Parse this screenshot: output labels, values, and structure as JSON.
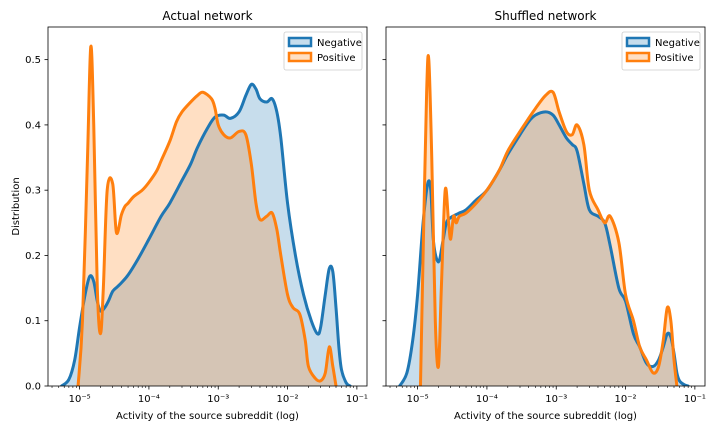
{
  "figure": {
    "ylabel": "Distribution",
    "xlabel": "Activity of the source subreddit (log)"
  },
  "colors": {
    "negative": "#1f77b4",
    "positive": "#ff7f0e"
  },
  "chart_data": [
    {
      "type": "area",
      "title": "Actual network",
      "xlabel": "Activity of the source subreddit (log)",
      "ylabel": "Distribution",
      "x_scale": "log",
      "xlim": [
        3.5e-06,
        0.14
      ],
      "ylim": [
        0,
        0.55
      ],
      "xticks": [
        1e-05,
        0.0001,
        0.001,
        0.01,
        0.1
      ],
      "xtick_labels": [
        "10⁻⁵",
        "10⁻⁴",
        "10⁻³",
        "10⁻²",
        "10⁻¹"
      ],
      "yticks": [
        0.0,
        0.1,
        0.2,
        0.3,
        0.4,
        0.5
      ],
      "ytick_labels": [
        "0.0",
        "0.1",
        "0.2",
        "0.3",
        "0.4",
        "0.5"
      ],
      "legend": "top-right",
      "series": [
        {
          "name": "Negative",
          "x": [
            5.5e-06,
            7e-06,
            8.5e-06,
            1e-05,
            1.2e-05,
            1.4e-05,
            1.6e-05,
            1.8e-05,
            2e-05,
            2.3e-05,
            2.6e-05,
            3e-05,
            3.5e-05,
            4e-05,
            5e-05,
            7e-05,
            0.0001,
            0.00015,
            0.0002,
            0.0003,
            0.0004,
            0.0005,
            0.0007,
            0.0009,
            0.0012,
            0.0015,
            0.002,
            0.0025,
            0.003,
            0.0035,
            0.004,
            0.005,
            0.006,
            0.007,
            0.008,
            0.01,
            0.013,
            0.017,
            0.022,
            0.027,
            0.03,
            0.035,
            0.04,
            0.045,
            0.05,
            0.055,
            0.06,
            0.07,
            0.08
          ],
          "y": [
            0.0,
            0.01,
            0.04,
            0.09,
            0.14,
            0.168,
            0.16,
            0.13,
            0.115,
            0.12,
            0.13,
            0.145,
            0.152,
            0.158,
            0.17,
            0.195,
            0.225,
            0.26,
            0.28,
            0.315,
            0.34,
            0.365,
            0.395,
            0.412,
            0.415,
            0.41,
            0.42,
            0.445,
            0.462,
            0.455,
            0.44,
            0.435,
            0.44,
            0.42,
            0.38,
            0.28,
            0.2,
            0.14,
            0.1,
            0.08,
            0.09,
            0.14,
            0.18,
            0.175,
            0.12,
            0.06,
            0.025,
            0.005,
            0.0
          ]
        },
        {
          "name": "Positive",
          "x": [
            9.5e-06,
            1.1e-05,
            1.3e-05,
            1.45e-05,
            1.6e-05,
            1.8e-05,
            2e-05,
            2.2e-05,
            2.5e-05,
            3e-05,
            3.4e-05,
            4e-05,
            4.5e-05,
            5e-05,
            6e-05,
            8e-05,
            0.0001,
            0.00013,
            0.00015,
            0.0002,
            0.00025,
            0.0003,
            0.0004,
            0.0005,
            0.0006,
            0.0008,
            0.0009,
            0.001,
            0.0012,
            0.0015,
            0.002,
            0.0025,
            0.003,
            0.0035,
            0.004,
            0.005,
            0.006,
            0.007,
            0.008,
            0.01,
            0.012,
            0.015,
            0.018,
            0.02,
            0.025,
            0.03,
            0.035,
            0.04,
            0.045,
            0.05
          ],
          "y": [
            0.0,
            0.1,
            0.35,
            0.52,
            0.4,
            0.15,
            0.08,
            0.15,
            0.3,
            0.31,
            0.235,
            0.262,
            0.275,
            0.28,
            0.29,
            0.3,
            0.312,
            0.33,
            0.345,
            0.375,
            0.405,
            0.42,
            0.435,
            0.445,
            0.45,
            0.44,
            0.425,
            0.4,
            0.385,
            0.38,
            0.39,
            0.385,
            0.34,
            0.28,
            0.255,
            0.26,
            0.265,
            0.24,
            0.2,
            0.14,
            0.12,
            0.11,
            0.07,
            0.03,
            0.012,
            0.008,
            0.02,
            0.06,
            0.03,
            0.0
          ]
        }
      ]
    },
    {
      "type": "area",
      "title": "Shuffled network",
      "xlabel": "Activity of the source subreddit (log)",
      "x_scale": "log",
      "xlim": [
        3.5e-06,
        0.14
      ],
      "ylim": [
        0,
        0.55
      ],
      "xticks": [
        1e-05,
        0.0001,
        0.001,
        0.01,
        0.1
      ],
      "xtick_labels": [
        "10⁻⁵",
        "10⁻⁴",
        "10⁻³",
        "10⁻²",
        "10⁻¹"
      ],
      "legend": "top-right",
      "series": [
        {
          "name": "Negative",
          "x": [
            5.5e-06,
            7e-06,
            8.5e-06,
            1e-05,
            1.2e-05,
            1.4e-05,
            1.55e-05,
            1.7e-05,
            2e-05,
            2.3e-05,
            2.6e-05,
            3e-05,
            3.5e-05,
            4e-05,
            5e-05,
            7e-05,
            0.0001,
            0.00015,
            0.0002,
            0.0003,
            0.0004,
            0.0005,
            0.0007,
            0.0009,
            0.0011,
            0.0014,
            0.0017,
            0.002,
            0.0025,
            0.003,
            0.004,
            0.005,
            0.006,
            0.008,
            0.01,
            0.013,
            0.016,
            0.02,
            0.025,
            0.03,
            0.035,
            0.04,
            0.045,
            0.05,
            0.055,
            0.06,
            0.07,
            0.08
          ],
          "y": [
            0.0,
            0.02,
            0.07,
            0.14,
            0.25,
            0.31,
            0.3,
            0.22,
            0.19,
            0.22,
            0.25,
            0.258,
            0.262,
            0.265,
            0.27,
            0.285,
            0.3,
            0.33,
            0.355,
            0.385,
            0.405,
            0.415,
            0.42,
            0.415,
            0.4,
            0.38,
            0.37,
            0.36,
            0.31,
            0.27,
            0.26,
            0.25,
            0.215,
            0.15,
            0.13,
            0.08,
            0.06,
            0.035,
            0.03,
            0.04,
            0.06,
            0.08,
            0.075,
            0.05,
            0.02,
            0.008,
            0.002,
            0.0
          ]
        },
        {
          "name": "Positive",
          "x": [
            1.1e-05,
            1.2e-05,
            1.35e-05,
            1.45e-05,
            1.6e-05,
            1.8e-05,
            2e-05,
            2.2e-05,
            2.5e-05,
            2.8e-05,
            3e-05,
            3.3e-05,
            3.6e-05,
            4e-05,
            5e-05,
            7e-05,
            0.0001,
            0.00015,
            0.0002,
            0.0003,
            0.0004,
            0.0005,
            0.0007,
            0.0009,
            0.0011,
            0.0014,
            0.0017,
            0.002,
            0.0025,
            0.003,
            0.004,
            0.005,
            0.006,
            0.008,
            0.01,
            0.013,
            0.016,
            0.02,
            0.025,
            0.03,
            0.035,
            0.04,
            0.045,
            0.05,
            0.055
          ],
          "y": [
            0.0,
            0.2,
            0.45,
            0.5,
            0.35,
            0.1,
            0.03,
            0.15,
            0.3,
            0.25,
            0.225,
            0.26,
            0.25,
            0.26,
            0.265,
            0.28,
            0.3,
            0.33,
            0.36,
            0.39,
            0.41,
            0.425,
            0.445,
            0.45,
            0.42,
            0.39,
            0.385,
            0.4,
            0.37,
            0.3,
            0.27,
            0.25,
            0.26,
            0.22,
            0.14,
            0.1,
            0.06,
            0.04,
            0.02,
            0.03,
            0.07,
            0.12,
            0.1,
            0.04,
            0.0
          ]
        }
      ]
    }
  ]
}
